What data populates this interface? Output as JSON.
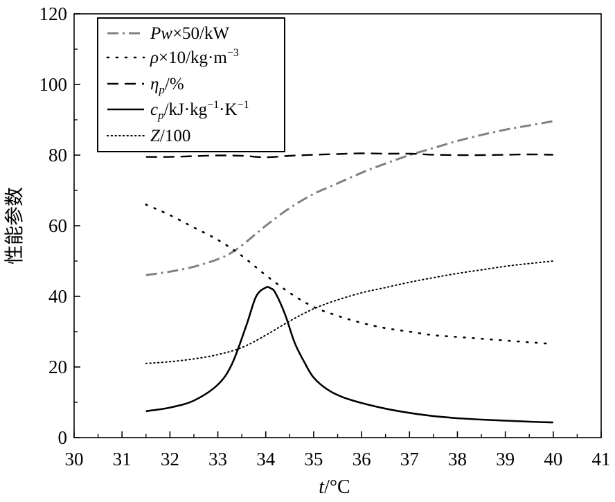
{
  "chart_data": {
    "type": "line",
    "title": "",
    "xlabel": "t/°C",
    "xlabel_parts": {
      "var": "t",
      "unit": "/°C"
    },
    "ylabel": "性能参数",
    "xlim": [
      30,
      41
    ],
    "ylim": [
      0,
      120
    ],
    "xticks": [
      30,
      31,
      32,
      33,
      34,
      35,
      36,
      37,
      38,
      39,
      40,
      41
    ],
    "yticks": [
      0,
      20,
      40,
      60,
      80,
      100,
      120
    ],
    "grid": false,
    "legend_position": "top-left",
    "series": [
      {
        "name": "Pw×50/kW",
        "name_parts": {
          "var": "Pw",
          "rest": "×50/kW"
        },
        "style": "dash-dot",
        "color": "#808080",
        "x": [
          31.5,
          32,
          32.5,
          33,
          33.3,
          33.6,
          34,
          34.5,
          35,
          35.5,
          36,
          36.5,
          37,
          37.5,
          38,
          38.5,
          39,
          39.5,
          40
        ],
        "values": [
          46,
          47,
          48.4,
          50.5,
          52.5,
          55.5,
          60,
          65,
          69,
          72,
          75,
          77.6,
          80,
          82,
          84,
          85.7,
          87.2,
          88.4,
          89.6
        ]
      },
      {
        "name": "ρ×10/kg·m⁻³",
        "name_parts": {
          "var": "ρ",
          "rest": "×10/kg·m",
          "sup": "−3"
        },
        "style": "sparse-dotted",
        "color": "#000000",
        "x": [
          31.5,
          32,
          32.5,
          33,
          33.5,
          34,
          34.5,
          35,
          35.5,
          36,
          36.5,
          37,
          37.5,
          38,
          38.5,
          39,
          39.5,
          40
        ],
        "values": [
          66,
          63,
          59.5,
          56,
          51.5,
          46,
          41,
          37,
          34.5,
          32.5,
          31,
          30,
          29,
          28.5,
          28,
          27.5,
          27,
          26.5
        ]
      },
      {
        "name": "ηp/%",
        "name_parts": {
          "var": "η",
          "sub": "p",
          "rest": "/%"
        },
        "style": "dashed",
        "color": "#000000",
        "x": [
          31.5,
          32,
          32.5,
          33,
          33.5,
          34,
          34.5,
          35,
          35.5,
          36,
          36.5,
          37,
          37.5,
          38,
          38.5,
          39,
          39.5,
          40
        ],
        "values": [
          79.5,
          79.5,
          79.7,
          79.9,
          79.8,
          79.4,
          79.8,
          80.1,
          80.3,
          80.5,
          80.4,
          80.4,
          80.1,
          80.0,
          80.0,
          80.1,
          80.2,
          80.1
        ]
      },
      {
        "name": "cp/kJ·kg⁻¹·K⁻¹",
        "name_parts": {
          "var": "c",
          "sub": "p",
          "rest": "/kJ·kg",
          "sup": "−1",
          "rest2": "·K",
          "sup2": "−1"
        },
        "style": "solid",
        "color": "#000000",
        "x": [
          31.5,
          32,
          32.5,
          33,
          33.3,
          33.6,
          33.8,
          34,
          34.1,
          34.2,
          34.4,
          34.6,
          34.8,
          35,
          35.3,
          35.6,
          36,
          36.5,
          37,
          37.5,
          38,
          38.5,
          39,
          39.5,
          40
        ],
        "values": [
          7.5,
          8.5,
          10.5,
          15,
          21,
          32,
          40,
          42.5,
          42.3,
          41,
          35,
          27,
          21.5,
          17,
          13.5,
          11.5,
          9.8,
          8.2,
          7.0,
          6.1,
          5.5,
          5.1,
          4.8,
          4.5,
          4.3
        ]
      },
      {
        "name": "Z/100",
        "name_parts": {
          "var": "Z",
          "rest": "/100"
        },
        "style": "dotted",
        "color": "#000000",
        "x": [
          31.5,
          32,
          32.5,
          33,
          33.5,
          34,
          34.5,
          35,
          35.5,
          36,
          36.5,
          37,
          37.5,
          38,
          38.5,
          39,
          39.5,
          40
        ],
        "values": [
          21,
          21.5,
          22.3,
          23.5,
          25.5,
          29,
          33,
          36.5,
          39,
          41,
          42.5,
          44,
          45.3,
          46.5,
          47.5,
          48.5,
          49.3,
          50
        ]
      }
    ]
  }
}
